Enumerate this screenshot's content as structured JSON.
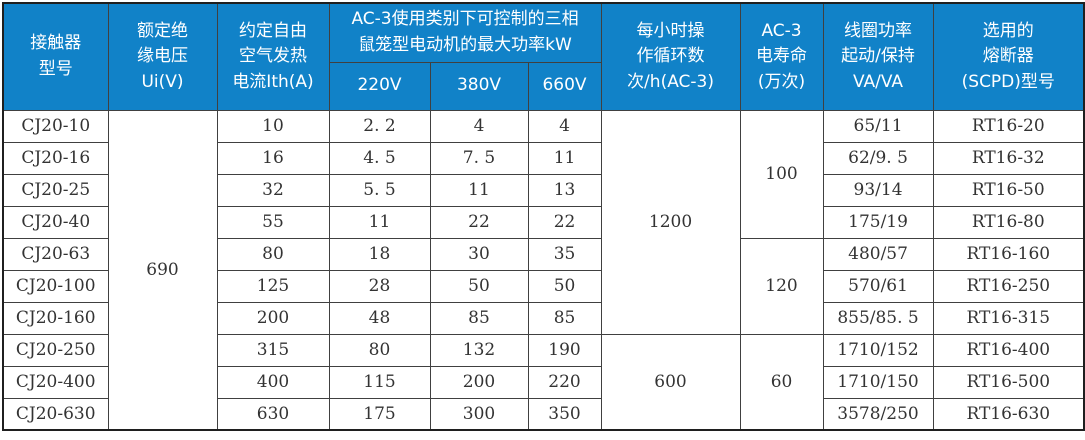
{
  "colors": {
    "header_bg": "#1182c8",
    "header_text": "#ffffff",
    "body_text": "#333333",
    "border": "#404040"
  },
  "table": {
    "header": {
      "model": "接触器\n型号",
      "ui": "额定绝\n缘电压\nUi(V)",
      "ith": "约定自由\n空气发热\n电流Ith(A)",
      "ac3_power": "AC-3使用类别下可控制的三相\n鼠笼型电动机的最大功率kW",
      "voltages": [
        "220V",
        "380V",
        "660V"
      ],
      "cycles": "每小时操\n作循环数\n次/h(AC-3)",
      "life": "AC-3\n电寿命\n(万次)",
      "coil": "线圈功率\n起动/保持\nVA/VA",
      "fuse": "选用的\n熔断器\n(SCPD)型号"
    },
    "merged": {
      "ui_all_rows": "690",
      "cycles_rows_1_7": "1200",
      "cycles_rows_8_10": "600",
      "life_rows_1_4": "100",
      "life_rows_5_7": "120",
      "life_rows_8_10": "60"
    },
    "rows": [
      {
        "model": "CJ20-10",
        "ith": "10",
        "p220": "2. 2",
        "p380": "4",
        "p660": "4",
        "coil": "65/11",
        "fuse": "RT16-20"
      },
      {
        "model": "CJ20-16",
        "ith": "16",
        "p220": "4. 5",
        "p380": "7. 5",
        "p660": "11",
        "coil": "62/9. 5",
        "fuse": "RT16-32"
      },
      {
        "model": "CJ20-25",
        "ith": "32",
        "p220": "5. 5",
        "p380": "11",
        "p660": "13",
        "coil": "93/14",
        "fuse": "RT16-50"
      },
      {
        "model": "CJ20-40",
        "ith": "55",
        "p220": "11",
        "p380": "22",
        "p660": "22",
        "coil": "175/19",
        "fuse": "RT16-80"
      },
      {
        "model": "CJ20-63",
        "ith": "80",
        "p220": "18",
        "p380": "30",
        "p660": "35",
        "coil": "480/57",
        "fuse": "RT16-160"
      },
      {
        "model": "CJ20-100",
        "ith": "125",
        "p220": "28",
        "p380": "50",
        "p660": "50",
        "coil": "570/61",
        "fuse": "RT16-250"
      },
      {
        "model": "CJ20-160",
        "ith": "200",
        "p220": "48",
        "p380": "85",
        "p660": "85",
        "coil": "855/85. 5",
        "fuse": "RT16-315"
      },
      {
        "model": "CJ20-250",
        "ith": "315",
        "p220": "80",
        "p380": "132",
        "p660": "190",
        "coil": "1710/152",
        "fuse": "RT16-400"
      },
      {
        "model": "CJ20-400",
        "ith": "400",
        "p220": "115",
        "p380": "200",
        "p660": "220",
        "coil": "1710/150",
        "fuse": "RT16-500"
      },
      {
        "model": "CJ20-630",
        "ith": "630",
        "p220": "175",
        "p380": "300",
        "p660": "350",
        "coil": "3578/250",
        "fuse": "RT16-630"
      }
    ]
  }
}
